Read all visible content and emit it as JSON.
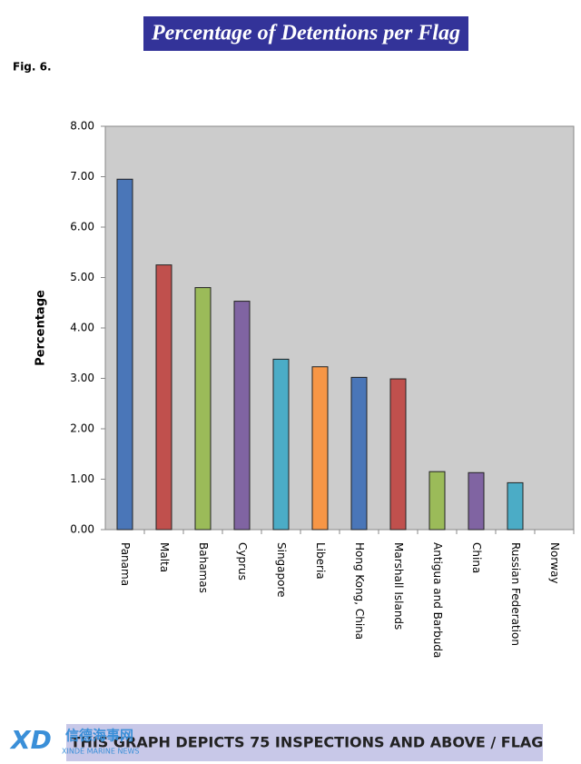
{
  "chart_data": {
    "type": "bar",
    "title": "Percentage of Detentions per Flag",
    "figure_label": "Fig. 6.",
    "y_label": "Percentage",
    "categories": [
      "Panama",
      "Malta",
      "Bahamas",
      "Cyprus",
      "Singapore",
      "Liberia",
      "Hong Kong, China",
      "Marshall Islands",
      "Antigua and Barbuda",
      "China",
      "Russian Federation",
      "Norway"
    ],
    "values": [
      6.95,
      5.25,
      4.8,
      4.53,
      3.38,
      3.23,
      3.02,
      2.99,
      1.15,
      1.13,
      0.93,
      0
    ],
    "colors": [
      "#4a76b8",
      "#c0504d",
      "#9bbb59",
      "#8064a2",
      "#4bacc6",
      "#f79646",
      "#4a76b8",
      "#c0504d",
      "#9bbb59",
      "#8064a2",
      "#4bacc6",
      "#f79646"
    ],
    "ylim": [
      0,
      8
    ],
    "yticks": [
      {
        "value": 0,
        "label": "0.00"
      },
      {
        "value": 1,
        "label": "1.00"
      },
      {
        "value": 2,
        "label": "2.00"
      },
      {
        "value": 3,
        "label": "3.00"
      },
      {
        "value": 4,
        "label": "4.00"
      },
      {
        "value": 5,
        "label": "5.00"
      },
      {
        "value": 6,
        "label": "6.00"
      },
      {
        "value": 7,
        "label": "7.00"
      },
      {
        "value": 8,
        "label": "8.00"
      }
    ],
    "grid": false,
    "footnote": "THIS GRAPH DEPICTS 75 INSPECTIONS AND ABOVE / FLAG",
    "watermark": {
      "logo": "XD",
      "text": "信德海事网",
      "subtext": "XINDE MARINE NEWS"
    }
  }
}
